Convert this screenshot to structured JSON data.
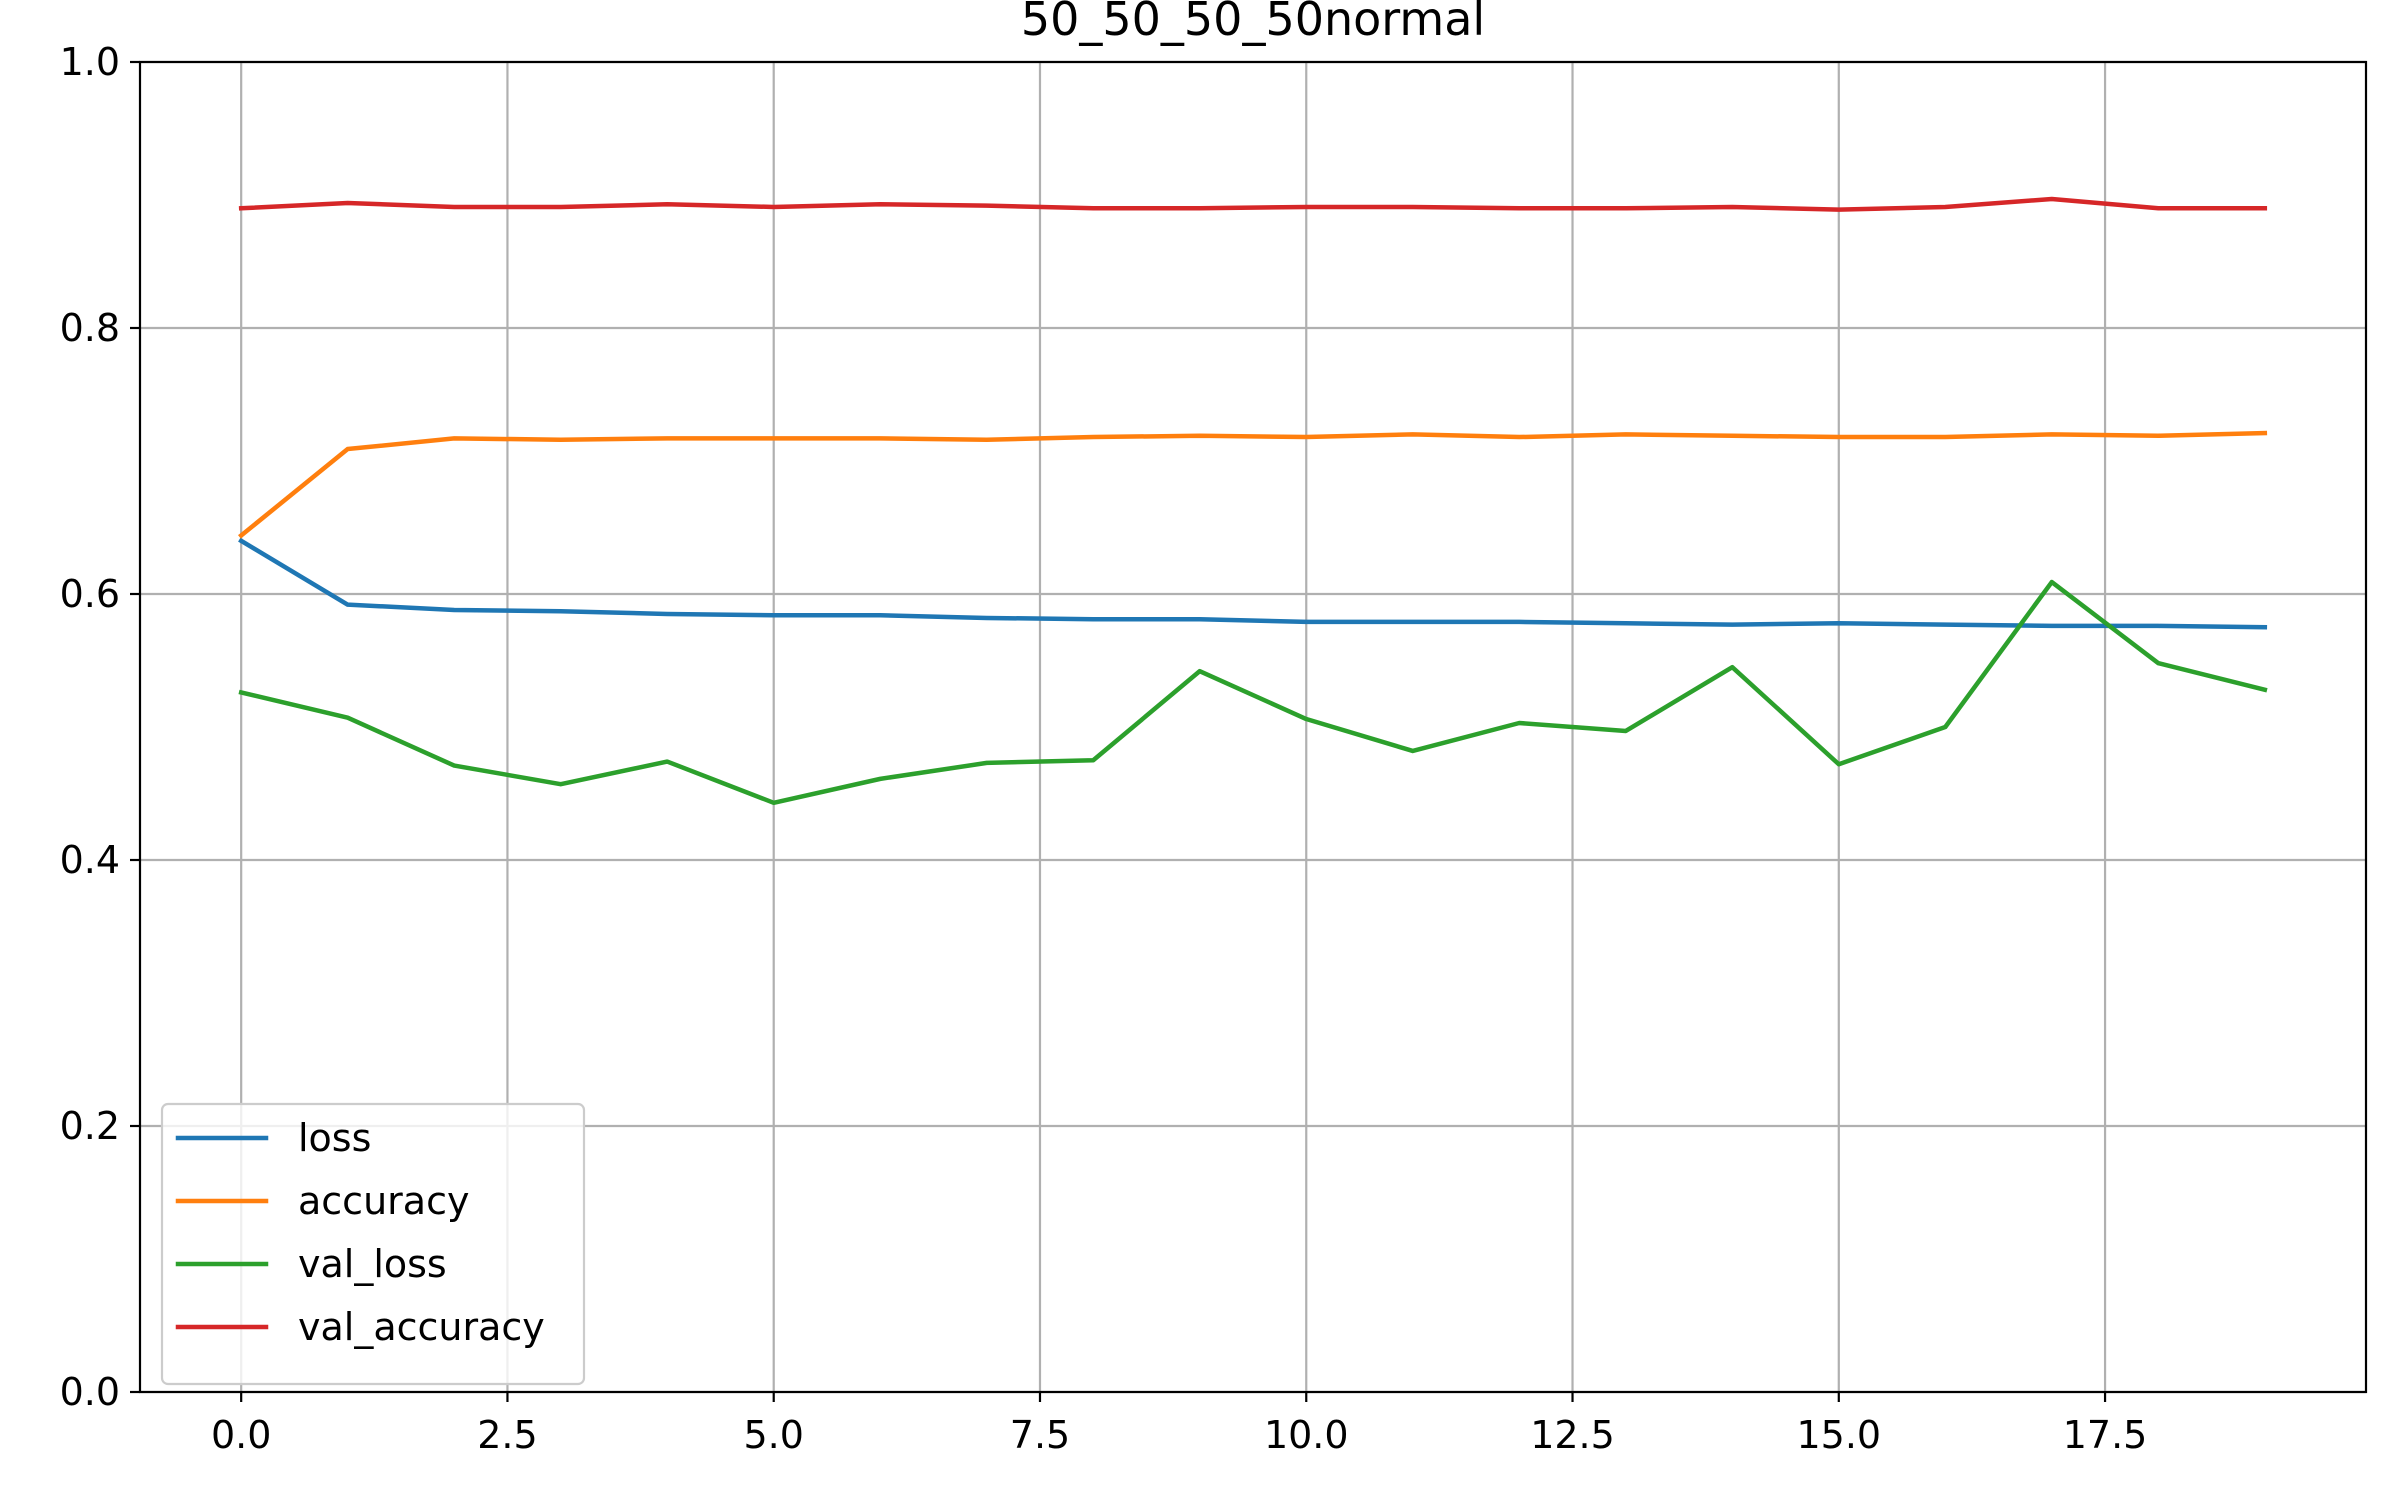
{
  "chart_data": {
    "type": "line",
    "title": "50_50_50_50normal",
    "xlabel": "",
    "ylabel": "",
    "xlim": [
      -0.95,
      19.95
    ],
    "ylim": [
      0.0,
      1.0
    ],
    "grid": true,
    "legend_position": "lower-left",
    "x": [
      0,
      1,
      2,
      3,
      4,
      5,
      6,
      7,
      8,
      9,
      10,
      11,
      12,
      13,
      14,
      15,
      16,
      17,
      18,
      19
    ],
    "x_ticks": [
      0.0,
      2.5,
      5.0,
      7.5,
      10.0,
      12.5,
      15.0,
      17.5
    ],
    "x_tick_labels": [
      "0.0",
      "2.5",
      "5.0",
      "7.5",
      "10.0",
      "12.5",
      "15.0",
      "17.5"
    ],
    "y_ticks": [
      0.0,
      0.2,
      0.4,
      0.6,
      0.8,
      1.0
    ],
    "y_tick_labels": [
      "0.0",
      "0.2",
      "0.4",
      "0.6",
      "0.8",
      "1.0"
    ],
    "series": [
      {
        "name": "loss",
        "color": "#1f77b4",
        "values": [
          0.64,
          0.592,
          0.588,
          0.587,
          0.585,
          0.584,
          0.584,
          0.582,
          0.581,
          0.581,
          0.579,
          0.579,
          0.579,
          0.578,
          0.577,
          0.578,
          0.577,
          0.576,
          0.576,
          0.575
        ]
      },
      {
        "name": "accuracy",
        "color": "#ff7f0e",
        "values": [
          0.644,
          0.709,
          0.717,
          0.716,
          0.717,
          0.717,
          0.717,
          0.716,
          0.718,
          0.719,
          0.718,
          0.72,
          0.718,
          0.72,
          0.719,
          0.718,
          0.718,
          0.72,
          0.719,
          0.721
        ]
      },
      {
        "name": "val_loss",
        "color": "#2ca02c",
        "values": [
          0.526,
          0.507,
          0.471,
          0.457,
          0.474,
          0.443,
          0.461,
          0.473,
          0.475,
          0.542,
          0.506,
          0.482,
          0.503,
          0.497,
          0.545,
          0.472,
          0.5,
          0.609,
          0.548,
          0.528
        ]
      },
      {
        "name": "val_accuracy",
        "color": "#d62728",
        "values": [
          0.89,
          0.894,
          0.891,
          0.891,
          0.893,
          0.891,
          0.893,
          0.892,
          0.89,
          0.89,
          0.891,
          0.891,
          0.89,
          0.89,
          0.891,
          0.889,
          0.891,
          0.897,
          0.89,
          0.89
        ]
      }
    ]
  }
}
